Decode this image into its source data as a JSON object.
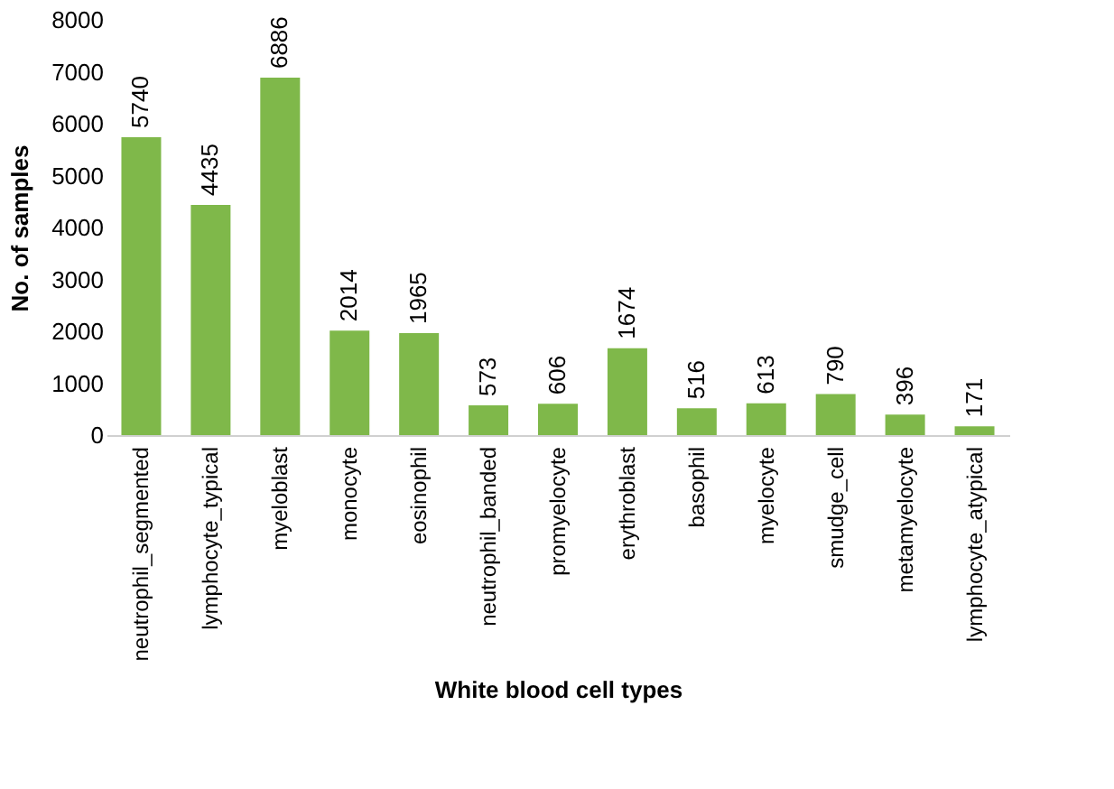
{
  "chart_data": {
    "type": "bar",
    "xlabel": "White blood cell types",
    "ylabel": "No. of samples",
    "categories": [
      "neutrophil_segmented",
      "lymphocyte_typical",
      "myeloblast",
      "monocyte",
      "eosinophil",
      "neutrophil_banded",
      "promyelocyte",
      "erythroblast",
      "basophil",
      "myelocyte",
      "smudge_cell",
      "metamyelocyte",
      "lymphocyte_atypical"
    ],
    "values": [
      5740,
      4435,
      6886,
      2014,
      1965,
      573,
      606,
      1674,
      516,
      613,
      790,
      396,
      171
    ],
    "color": "#7fb84a",
    "ylim": [
      0,
      8000
    ],
    "yticks": [
      0,
      1000,
      2000,
      3000,
      4000,
      5000,
      6000,
      7000,
      8000
    ],
    "grid": false,
    "data_labels": true
  }
}
